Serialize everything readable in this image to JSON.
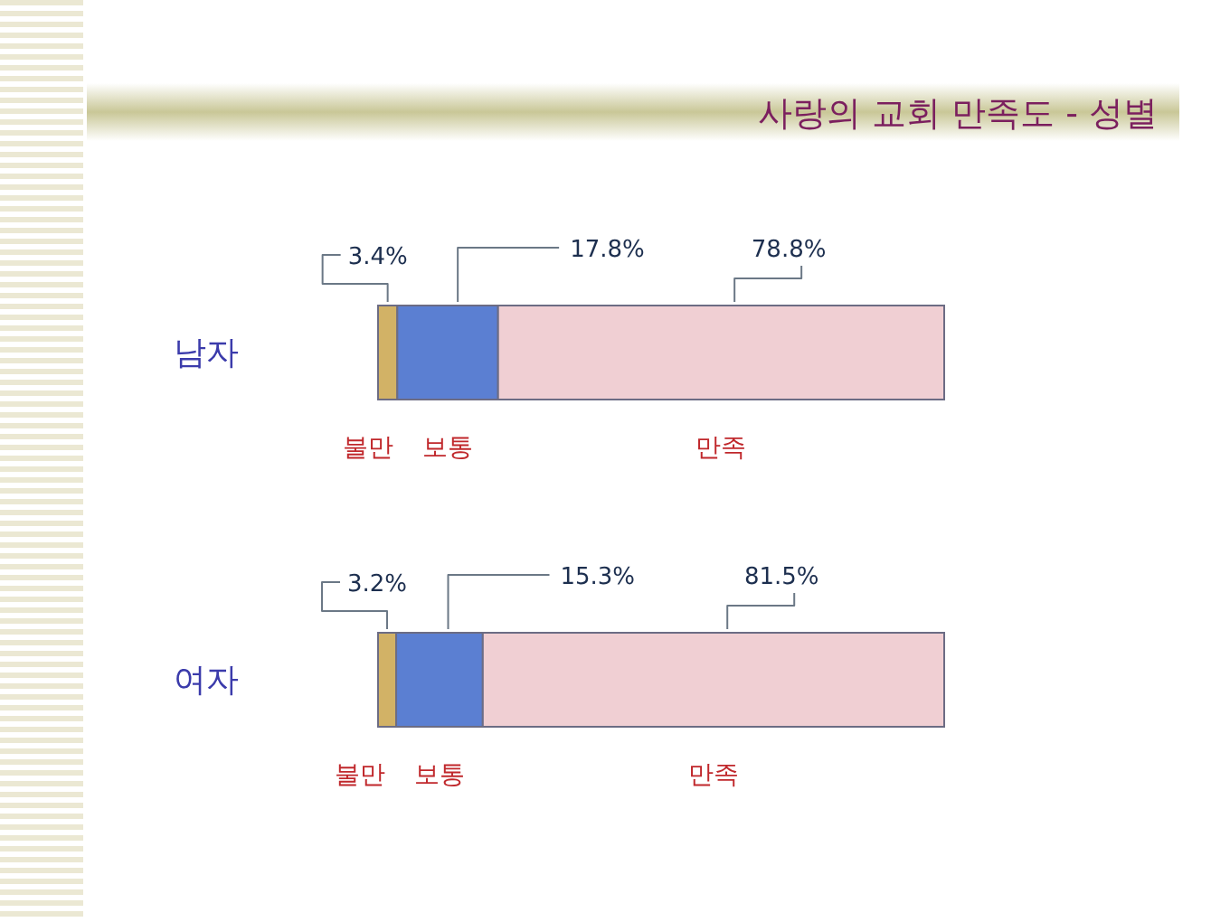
{
  "chart_data": {
    "type": "bar",
    "orientation": "horizontal",
    "stacked": true,
    "title": "사랑의 교회 만족도 - 성별",
    "tick_labels": "y",
    "categories": [
      "남자",
      "여자"
    ],
    "series": [
      {
        "name": "불만",
        "color": "#d2b266",
        "values": [
          3.4,
          3.2
        ],
        "value_labels": [
          "3.4%",
          "3.2%"
        ]
      },
      {
        "name": "보통",
        "color": "#5b7fd2",
        "values": [
          17.8,
          15.3
        ],
        "value_labels": [
          "17.8%",
          "15.3%"
        ]
      },
      {
        "name": "만족",
        "color": "#f0cfd3",
        "values": [
          78.8,
          81.5
        ],
        "value_labels": [
          "78.8%",
          "81.5%"
        ]
      }
    ]
  }
}
